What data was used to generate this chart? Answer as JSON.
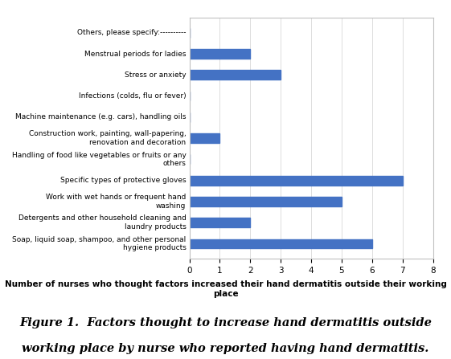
{
  "categories": [
    "Soap, liquid soap, shampoo, and other personal\nhygiene products",
    "Detergents and other household cleaning and\nlaundry products",
    "Work with wet hands or frequent hand\nwashing",
    "Specific types of protective gloves",
    "Handling of food like vegetables or fruits or any\nothers",
    "Construction work, painting, wall-papering,\nrenovation and decoration",
    "Machine maintenance (e.g. cars), handling oils",
    "Infections (colds, flu or fever)",
    "Stress or anxiety",
    "Menstrual periods for ladies",
    "Others, please specify:----------"
  ],
  "values": [
    6,
    2,
    5,
    7,
    0,
    1,
    0,
    0,
    3,
    2,
    0
  ],
  "bar_color": "#4472C4",
  "xlim": [
    0,
    8
  ],
  "xticks": [
    0,
    1,
    2,
    3,
    4,
    5,
    6,
    7,
    8
  ],
  "xlabel": "Number of nurses who thought factors increased their hand dermatitis outside their working place",
  "figure_caption_line1": "Figure 1.  Factors thought to increase hand dermatitis outside",
  "figure_caption_line2": "working place by nurse who reported having hand dermatitis.",
  "bg_color": "#ffffff",
  "bar_height": 0.45,
  "label_fontsize": 6.5,
  "tick_fontsize": 7.5,
  "xlabel_fontsize": 7.5,
  "caption_fontsize": 10.5
}
